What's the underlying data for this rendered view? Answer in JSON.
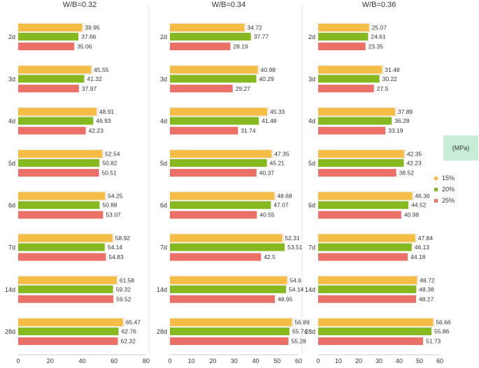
{
  "unit": "(MPa)",
  "chart_data": {
    "type": "bar",
    "orientation": "horizontal",
    "categories": [
      "2d",
      "3d",
      "4d",
      "5d",
      "6d",
      "7d",
      "14d",
      "28d"
    ],
    "panels": [
      {
        "title": "W/B=0.32",
        "ticks": [
          "0",
          "20",
          "40",
          "60",
          "80"
        ],
        "xlim": [
          0,
          80
        ],
        "series": [
          {
            "name": "15%",
            "values": [
              39.95,
              45.55,
              48.91,
              52.54,
              54.25,
              58.92,
              61.58,
              65.47
            ]
          },
          {
            "name": "20%",
            "values": [
              37.66,
              41.32,
              46.93,
              50.82,
              50.88,
              54.14,
              59.32,
              62.76
            ]
          },
          {
            "name": "25%",
            "values": [
              35.06,
              37.97,
              42.23,
              50.51,
              53.07,
              54.83,
              59.52,
              62.32
            ]
          }
        ],
        "labels": [
          [
            "39.95",
            "45.55",
            "48.91",
            "52.54",
            "54.25",
            "58.92",
            "61.58",
            "65.47"
          ],
          [
            "37.66",
            "41.32",
            "46.93",
            "50.82",
            "50.88",
            "54.14",
            "59.32",
            "62.76"
          ],
          [
            "35.06",
            "37.97",
            "42.23",
            "50.51",
            "53.07",
            "54.83",
            "59.52",
            "62.32"
          ]
        ]
      },
      {
        "title": "W/B=0.34",
        "ticks": [
          "0",
          "10",
          "20",
          "30",
          "40",
          "50",
          "60"
        ],
        "xlim": [
          0,
          60
        ],
        "series": [
          {
            "name": "15%",
            "values": [
              34.72,
              40.98,
              45.33,
              47.35,
              48.68,
              52.31,
              54.6,
              56.89
            ]
          },
          {
            "name": "20%",
            "values": [
              37.77,
              40.29,
              41.48,
              45.21,
              47.07,
              53.51,
              54.14,
              55.74
            ]
          },
          {
            "name": "25%",
            "values": [
              28.19,
              29.27,
              31.74,
              40.37,
              40.55,
              42.5,
              48.95,
              55.28
            ]
          }
        ],
        "labels": [
          [
            "34.72",
            "40.98",
            "45.33",
            "47.35",
            "48.68",
            "52.31",
            "54.6",
            "56.89"
          ],
          [
            "37.77",
            "40.29",
            "41.48",
            "45.21",
            "47.07",
            "53.51",
            "54.14",
            "55.74"
          ],
          [
            "28.19",
            "29.27",
            "31.74",
            "40.37",
            "40.55",
            "42.5",
            "48.95",
            "55.28"
          ]
        ]
      },
      {
        "title": "W/B=0.36",
        "ticks": [
          "0",
          "10",
          "20",
          "30",
          "40",
          "50",
          "60"
        ],
        "xlim": [
          0,
          60
        ],
        "series": [
          {
            "name": "15%",
            "values": [
              25.07,
              31.48,
              37.89,
              42.35,
              46.36,
              47.84,
              48.72,
              56.66
            ]
          },
          {
            "name": "20%",
            "values": [
              24.61,
              30.22,
              36.28,
              42.23,
              44.52,
              46.13,
              48.38,
              55.86
            ]
          },
          {
            "name": "25%",
            "values": [
              23.35,
              27.5,
              33.19,
              38.52,
              40.98,
              44.18,
              48.27,
              51.73
            ]
          }
        ],
        "labels": [
          [
            "25.07",
            "31.48",
            "37.89",
            "42.35",
            "46.36",
            "47.84",
            "48.72",
            "56.66"
          ],
          [
            "24.61",
            "30.22",
            "36.28",
            "42.23",
            "44.52",
            "46.13",
            "48.38",
            "55.86"
          ],
          [
            "23.35",
            "27.5",
            "33.19",
            "38.52",
            "40.98",
            "44.18",
            "48.27",
            "51.73"
          ]
        ]
      }
    ],
    "legend": {
      "position": "right",
      "items": [
        {
          "name": "15%",
          "color": "#f5bd45"
        },
        {
          "name": "20%",
          "color": "#86b81f"
        },
        {
          "name": "25%",
          "color": "#eb7068"
        }
      ]
    },
    "grid": false
  }
}
